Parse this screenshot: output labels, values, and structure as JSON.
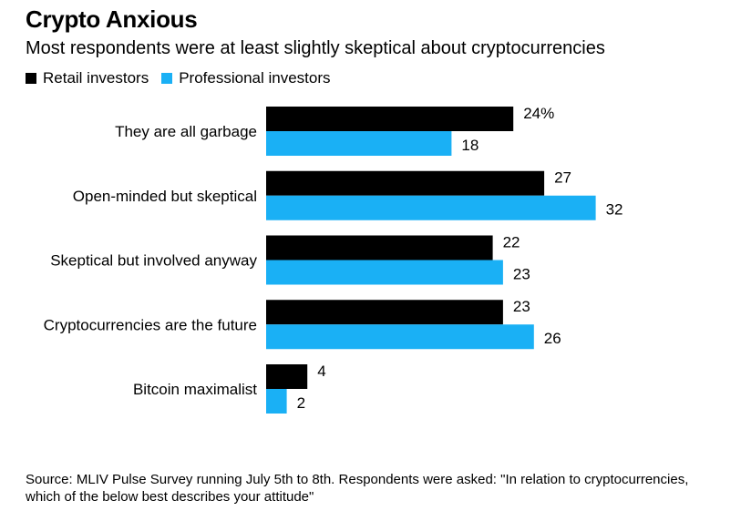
{
  "chart_data": {
    "type": "bar",
    "orientation": "horizontal",
    "title": "Crypto Anxious",
    "subtitle": "Most respondents were at least slightly skeptical about cryptocurrencies",
    "categories": [
      "They are all garbage",
      "Open-minded but skeptical",
      "Skeptical but involved anyway",
      "Cryptocurrencies are the future",
      "Bitcoin maximalist"
    ],
    "series": [
      {
        "name": "Retail investors",
        "color": "#000000",
        "values": [
          24,
          27,
          22,
          23,
          4
        ],
        "labels": [
          "24%",
          "27",
          "22",
          "23",
          "4"
        ]
      },
      {
        "name": "Professional investors",
        "color": "#1ab0f5",
        "values": [
          18,
          32,
          23,
          26,
          2
        ],
        "labels": [
          "18",
          "32",
          "23",
          "26",
          "2"
        ]
      }
    ],
    "xlim": [
      0,
      32
    ],
    "grid": false,
    "legend_position": "top-left"
  },
  "source": "Source: MLIV Pulse Survey running July 5th to 8th. Respondents were asked: \"In relation to cryptocurrencies, which of the below best describes your attitude\""
}
